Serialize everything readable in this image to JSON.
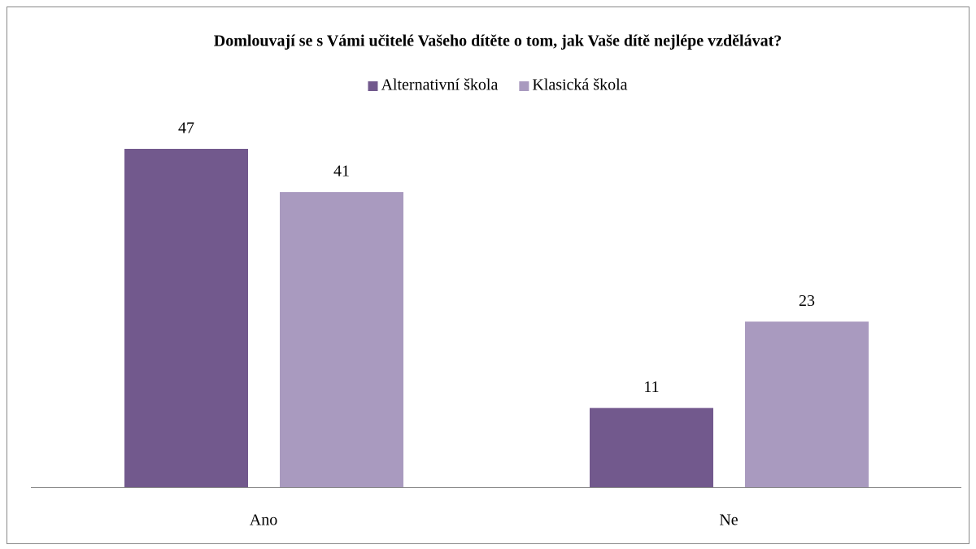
{
  "chart_data": {
    "type": "bar",
    "title": "Domlouvají se s Vámi učitelé Vašeho dítěte o tom, jak Vaše dítě nejlépe vzdělávat?",
    "categories": [
      "Ano",
      "Ne"
    ],
    "series": [
      {
        "name": "Alternativní škola",
        "color": "#72598d",
        "values": [
          47,
          11
        ]
      },
      {
        "name": "Klasická škola",
        "color": "#a99abf",
        "values": [
          41,
          23
        ]
      }
    ],
    "legend": "top"
  }
}
